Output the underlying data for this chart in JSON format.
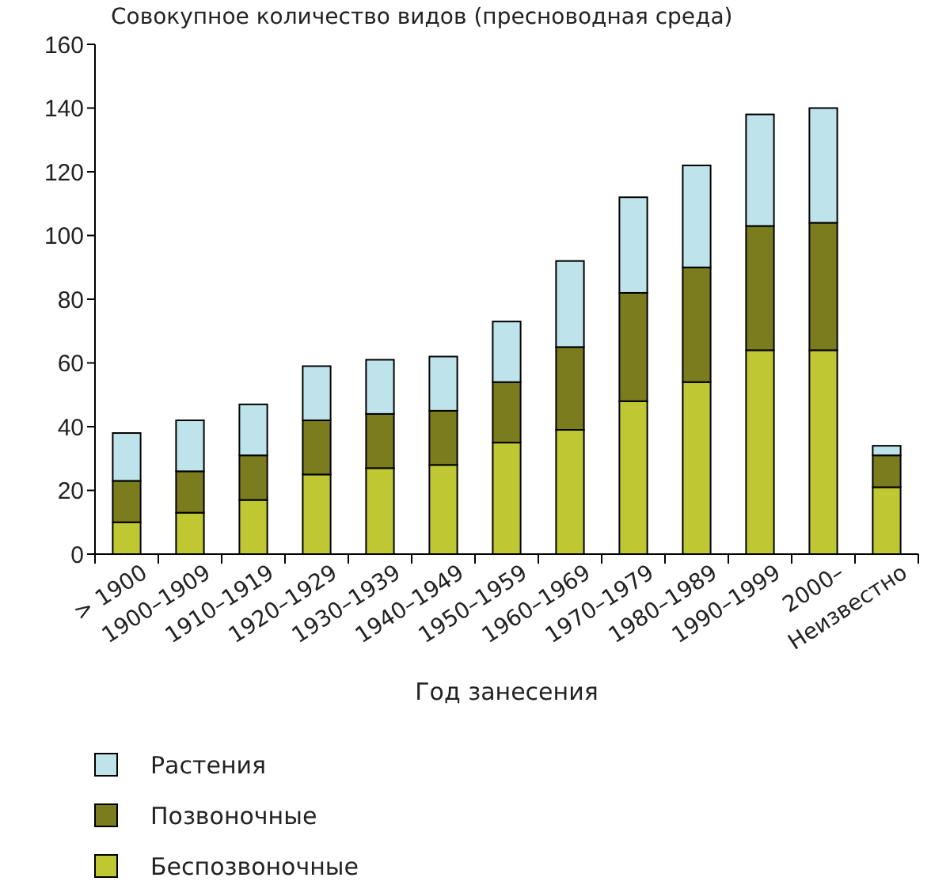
{
  "chart_data": {
    "type": "bar",
    "stacked": true,
    "title": "Совокупное количество видов (пресноводная среда)",
    "xlabel": "Год занесения",
    "categories": [
      "> 1900",
      "1900–1909",
      "1910–1919",
      "1920–1929",
      "1930–1939",
      "1940–1949",
      "1950–1959",
      "1960–1969",
      "1970–1979",
      "1980–1989",
      "1990–1999",
      "2000–",
      "Неизвестно"
    ],
    "series": [
      {
        "name": "Беспозвоночные",
        "color": "#bfc832",
        "values": [
          10,
          13,
          17,
          25,
          27,
          28,
          35,
          39,
          48,
          54,
          64,
          64,
          21
        ]
      },
      {
        "name": "Позвоночные",
        "color": "#7a7c1e",
        "values": [
          13,
          13,
          14,
          17,
          17,
          17,
          19,
          26,
          34,
          36,
          39,
          40,
          10
        ]
      },
      {
        "name": "Растения",
        "color": "#bfe3ea",
        "values": [
          15,
          16,
          16,
          17,
          17,
          17,
          19,
          27,
          30,
          32,
          35,
          36,
          3
        ]
      }
    ],
    "ylim": [
      0,
      160
    ],
    "yticks": [
      0,
      20,
      40,
      60,
      80,
      100,
      120,
      140,
      160
    ],
    "grid": false,
    "legend": "bottom"
  }
}
